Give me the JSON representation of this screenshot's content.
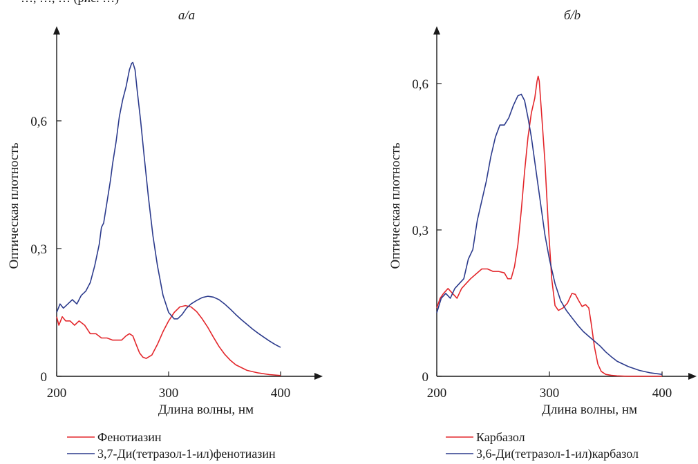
{
  "page": {
    "top_text": "…, …, … (рис. …)"
  },
  "chart_data": [
    {
      "type": "line",
      "panel_label": "a/a",
      "xlabel": "Длина волны, нм",
      "ylabel": "Оптическая плотность",
      "xlim": [
        200,
        400
      ],
      "ylim": [
        0,
        0.75
      ],
      "x_ticks": [
        200,
        300,
        400
      ],
      "x_tick_labels": [
        "200",
        "300",
        "400"
      ],
      "y_ticks": [
        0,
        0.3,
        0.6
      ],
      "y_tick_labels": [
        "0",
        "0,3",
        "0,6"
      ],
      "grid": false,
      "legend_position": "bottom-left",
      "series": [
        {
          "name": "Фенотиазин",
          "color": "#e3262b",
          "x": [
            200,
            202,
            205,
            208,
            212,
            216,
            220,
            225,
            230,
            235,
            240,
            245,
            250,
            255,
            258,
            262,
            265,
            268,
            271,
            274,
            277,
            280,
            285,
            290,
            295,
            300,
            305,
            310,
            315,
            320,
            325,
            330,
            335,
            340,
            345,
            350,
            355,
            360,
            370,
            380,
            390,
            400
          ],
          "y": [
            0.14,
            0.12,
            0.14,
            0.13,
            0.13,
            0.12,
            0.13,
            0.12,
            0.1,
            0.1,
            0.09,
            0.09,
            0.085,
            0.085,
            0.085,
            0.095,
            0.1,
            0.095,
            0.075,
            0.055,
            0.045,
            0.042,
            0.05,
            0.075,
            0.105,
            0.13,
            0.15,
            0.163,
            0.166,
            0.163,
            0.152,
            0.135,
            0.115,
            0.092,
            0.07,
            0.052,
            0.038,
            0.027,
            0.014,
            0.008,
            0.004,
            0.002
          ]
        },
        {
          "name": "3,7-Ди(тетразол-1-ил)фенотиазин",
          "color": "#2b3a8c",
          "x": [
            200,
            203,
            206,
            210,
            214,
            218,
            222,
            226,
            230,
            234,
            238,
            240,
            242,
            245,
            248,
            250,
            253,
            256,
            259,
            262,
            265,
            267,
            268,
            270,
            272,
            275,
            278,
            282,
            286,
            290,
            295,
            300,
            305,
            308,
            312,
            316,
            320,
            325,
            330,
            335,
            340,
            345,
            350,
            355,
            360,
            365,
            370,
            375,
            380,
            385,
            390,
            395,
            400
          ],
          "y": [
            0.15,
            0.17,
            0.16,
            0.17,
            0.18,
            0.17,
            0.19,
            0.2,
            0.22,
            0.26,
            0.31,
            0.35,
            0.36,
            0.41,
            0.46,
            0.5,
            0.55,
            0.61,
            0.65,
            0.68,
            0.72,
            0.735,
            0.737,
            0.72,
            0.67,
            0.6,
            0.52,
            0.42,
            0.33,
            0.26,
            0.19,
            0.15,
            0.135,
            0.135,
            0.145,
            0.16,
            0.17,
            0.178,
            0.185,
            0.188,
            0.186,
            0.18,
            0.17,
            0.158,
            0.145,
            0.133,
            0.122,
            0.111,
            0.101,
            0.092,
            0.083,
            0.075,
            0.068
          ]
        }
      ]
    },
    {
      "type": "line",
      "panel_label": "б/b",
      "xlabel": "Длина волны, нм",
      "ylabel": "Оптическая плотность",
      "xlim": [
        200,
        400
      ],
      "ylim": [
        0,
        0.68
      ],
      "x_ticks": [
        200,
        300,
        400
      ],
      "x_tick_labels": [
        "200",
        "300",
        "400"
      ],
      "y_ticks": [
        0,
        0.3,
        0.6
      ],
      "y_tick_labels": [
        "0",
        "0,3",
        "0,6"
      ],
      "grid": false,
      "legend_position": "bottom-left",
      "series": [
        {
          "name": "Карбазол",
          "color": "#e3262b",
          "x": [
            200,
            203,
            206,
            210,
            214,
            218,
            222,
            226,
            230,
            235,
            240,
            245,
            250,
            255,
            260,
            263,
            266,
            269,
            272,
            275,
            278,
            281,
            284,
            287,
            289,
            290,
            291,
            293,
            296,
            299,
            302,
            305,
            308,
            312,
            316,
            320,
            323,
            326,
            329,
            332,
            335,
            337,
            340,
            343,
            346,
            350,
            355,
            360,
            370,
            380,
            390,
            400
          ],
          "y": [
            0.14,
            0.16,
            0.17,
            0.18,
            0.17,
            0.16,
            0.18,
            0.19,
            0.2,
            0.21,
            0.22,
            0.22,
            0.215,
            0.215,
            0.212,
            0.2,
            0.2,
            0.225,
            0.27,
            0.34,
            0.42,
            0.49,
            0.54,
            0.57,
            0.605,
            0.615,
            0.605,
            0.54,
            0.44,
            0.31,
            0.2,
            0.145,
            0.135,
            0.14,
            0.15,
            0.17,
            0.168,
            0.155,
            0.143,
            0.147,
            0.14,
            0.11,
            0.06,
            0.025,
            0.01,
            0.004,
            0.002,
            0.001,
            0,
            0,
            0,
            0
          ]
        },
        {
          "name": "3,6-Ди(тетразол-1-ил)карбазол",
          "color": "#2b3a8c",
          "x": [
            200,
            204,
            208,
            212,
            216,
            220,
            224,
            228,
            232,
            236,
            240,
            244,
            248,
            252,
            256,
            260,
            264,
            268,
            272,
            275,
            278,
            281,
            284,
            287,
            290,
            293,
            296,
            300,
            305,
            310,
            315,
            320,
            325,
            330,
            335,
            340,
            345,
            350,
            355,
            360,
            370,
            380,
            390,
            400
          ],
          "y": [
            0.13,
            0.16,
            0.17,
            0.16,
            0.18,
            0.19,
            0.2,
            0.24,
            0.26,
            0.32,
            0.36,
            0.4,
            0.45,
            0.49,
            0.515,
            0.515,
            0.53,
            0.555,
            0.575,
            0.578,
            0.565,
            0.53,
            0.49,
            0.44,
            0.39,
            0.34,
            0.29,
            0.24,
            0.19,
            0.155,
            0.135,
            0.12,
            0.105,
            0.092,
            0.082,
            0.072,
            0.062,
            0.05,
            0.04,
            0.031,
            0.02,
            0.012,
            0.007,
            0.004
          ]
        }
      ]
    }
  ]
}
